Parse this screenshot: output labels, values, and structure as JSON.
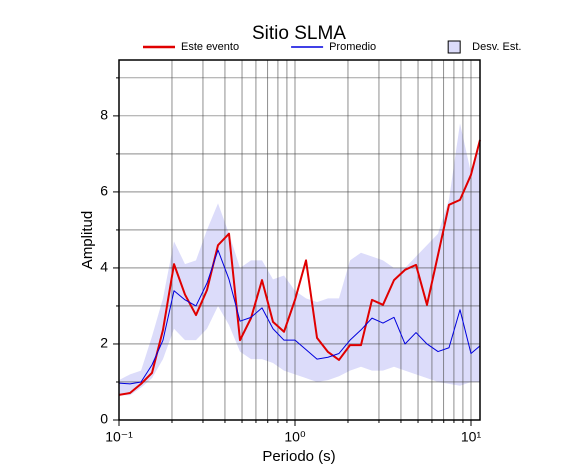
{
  "chart_data": {
    "type": "line",
    "title": "Sitio SLMA",
    "x_label": "Periodo (s)",
    "y_label": "Amplitud",
    "x_scale": "log",
    "grid": true,
    "legend": "top",
    "xlim": [
      0.1,
      11.25
    ],
    "ylim": [
      0,
      9.47
    ],
    "xticks": [
      {
        "value": 0.1,
        "label": "10⁻¹"
      },
      {
        "value": 1,
        "label": "10⁰"
      },
      {
        "value": 10,
        "label": "10¹"
      }
    ],
    "xminor": [
      0.2,
      0.3,
      0.4,
      0.5,
      0.6,
      0.7,
      0.8,
      0.9,
      2,
      3,
      4,
      5,
      6,
      7,
      8,
      9
    ],
    "yticks": [
      0,
      2,
      4,
      6,
      8
    ],
    "yminor": [
      1,
      3,
      5,
      7,
      9
    ],
    "x": [
      0.1,
      0.1155,
      0.1334,
      0.154,
      0.1778,
      0.2054,
      0.2371,
      0.2738,
      0.3162,
      0.3652,
      0.4217,
      0.487,
      0.5623,
      0.6494,
      0.7499,
      0.866,
      1,
      1.155,
      1.334,
      1.54,
      1.778,
      2.054,
      2.371,
      2.738,
      3.162,
      3.652,
      4.217,
      4.87,
      5.623,
      6.494,
      7.499,
      8.66,
      10,
      11.25
    ],
    "band": {
      "name": "Desv. Est.",
      "color": "#dcdcfa",
      "upper": [
        1.05,
        1.2,
        1.3,
        2.2,
        3.2,
        4.7,
        4.1,
        4.2,
        5.0,
        5.7,
        4.9,
        4.0,
        4.2,
        4.2,
        3.7,
        3.8,
        3.4,
        3.2,
        3.1,
        3.2,
        3.2,
        4.2,
        4.4,
        4.3,
        4.2,
        4.0,
        4.0,
        4.3,
        4.6,
        4.9,
        5.8,
        7.8,
        6.5,
        7.2
      ],
      "lower": [
        0.65,
        0.65,
        0.85,
        1.1,
        1.6,
        2.4,
        2.1,
        2.1,
        2.4,
        3.0,
        2.5,
        1.8,
        1.6,
        1.6,
        1.5,
        1.3,
        1.2,
        1.1,
        1.0,
        1.05,
        1.15,
        1.3,
        1.4,
        1.3,
        1.3,
        1.4,
        1.3,
        1.2,
        1.1,
        1.0,
        0.95,
        0.9,
        1.0,
        1.0
      ]
    },
    "series": [
      {
        "name": "Este evento",
        "color": "#e00000",
        "width": 2,
        "values": [
          0.66,
          0.71,
          0.95,
          1.24,
          2.37,
          4.1,
          3.3,
          2.76,
          3.42,
          4.6,
          4.9,
          2.1,
          2.68,
          3.68,
          2.58,
          2.32,
          3.16,
          4.2,
          2.16,
          1.79,
          1.58,
          1.97,
          1.97,
          3.16,
          3.03,
          3.68,
          3.95,
          4.08,
          3.03,
          4.34,
          5.66,
          5.79,
          6.45,
          7.37
        ]
      },
      {
        "name": "Promedio",
        "color": "#0000dd",
        "width": 1,
        "values": [
          0.97,
          0.95,
          1.0,
          1.45,
          2.1,
          3.4,
          3.16,
          3.0,
          3.6,
          4.47,
          3.7,
          2.6,
          2.7,
          2.95,
          2.4,
          2.1,
          2.1,
          1.85,
          1.6,
          1.65,
          1.75,
          2.1,
          2.37,
          2.68,
          2.55,
          2.7,
          2.0,
          2.3,
          2.0,
          1.8,
          1.9,
          2.9,
          1.75,
          1.95
        ]
      }
    ]
  }
}
